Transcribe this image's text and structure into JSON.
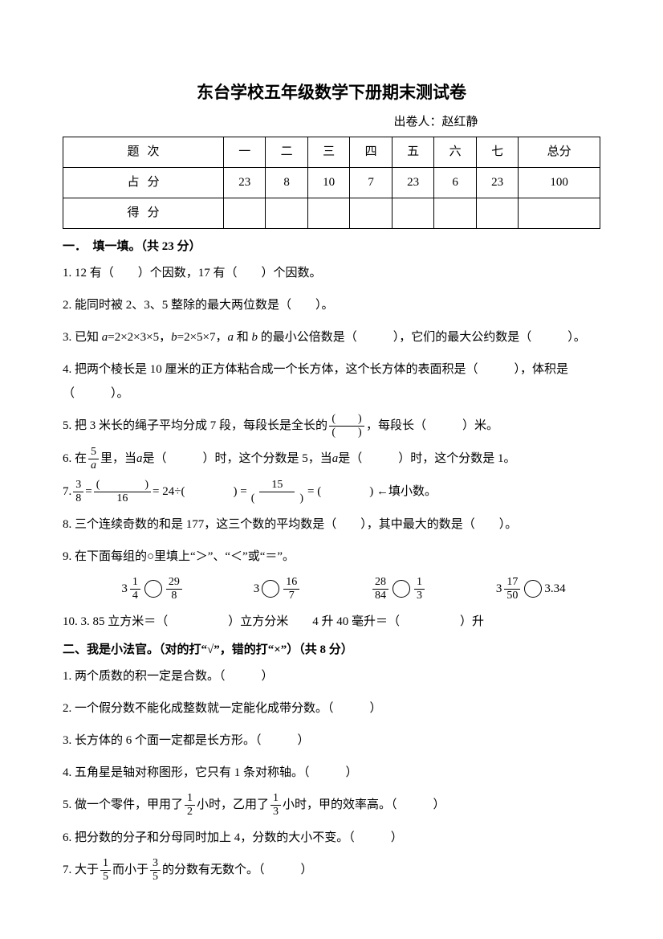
{
  "title": "东台学校五年级数学下册期末测试卷",
  "author": "出卷人：赵红静",
  "table": {
    "head_label": "题次",
    "row2_label": "占分",
    "row3_label": "得分",
    "cols": [
      "一",
      "二",
      "三",
      "四",
      "五",
      "六",
      "七",
      "总分"
    ],
    "scores": [
      "23",
      "8",
      "10",
      "7",
      "23",
      "6",
      "23",
      "100"
    ]
  },
  "sec1_head": "一．　填一填。（共 23 分）",
  "q1_1": "1. 12 有（　　）个因数，17 有（　　）个因数。",
  "q1_2": "2. 能同时被 2、3、5 整除的最大两位数是（　　）。",
  "q1_3a": "3. 已知 ",
  "q1_3b": "=2×2×3×5，",
  "q1_3c": "=2×5×7，",
  "q1_3d": " 和 ",
  "q1_3e": " 的最小公倍数是（　　　），它们的最大公约数是（　　　）。",
  "q1_4": "4. 把两个棱长是 10 厘米的正方体粘合成一个长方体，这个长方体的表面积是（　　　），体积是（　　　）。",
  "q1_5a": "5. 把 3 米长的绳子平均分成 7 段，每段长是全长的",
  "q1_5b": "，每段长（　　　）米。",
  "q1_6a": "6. 在",
  "q1_6b": "里，当 ",
  "q1_6c": " 是（　　　）时，这个分数是 5，当 ",
  "q1_6d": " 是（　　　）时，这个分数是 1。",
  "q1_7a": "7. ",
  "q1_7b": " = ",
  "q1_7c": " = 24÷(　　　　) = ",
  "q1_7d": " = (　　　　) ←填小数。",
  "q1_8": "8. 三个连续奇数的和是 177，这三个数的平均数是（　　），其中最大的数是（　　）。",
  "q1_9": "9. 在下面每组的○里填上“＞”、“＜”或“＝”。",
  "q1_10": "10. 3. 85 立方米＝（　　　　　）立方分米　　4 升 40 毫升＝（　　　　　）升",
  "sec2_head": "二、我是小法官。（对的打“√”，错的打“×”）（共 8 分）",
  "q2_1": "1. 两个质数的积一定是合数。（　　　）",
  "q2_2": "2. 一个假分数不能化成整数就一定能化成带分数。（　　　）",
  "q2_3": "3. 长方体的 6 个面一定都是长方形。（　　　）",
  "q2_4": "4. 五角星是轴对称图形，它只有 1 条对称轴。（　　　）",
  "q2_5a": "5. 做一个零件，甲用了",
  "q2_5b": "小时，乙用了",
  "q2_5c": "小时，甲的效率高。（　　　）",
  "q2_6": "6. 把分数的分子和分母同时加上 4，分数的大小不变。（　　　）",
  "q2_7a": "7. 大于",
  "q2_7b": "而小于",
  "q2_7c": "的分数有无数个。（　　　）",
  "fr": {
    "f5a_n": "5",
    "f5a_d": "a",
    "f38_n": "3",
    "f38_d": "8",
    "fblank16_n": "(　　　　)",
    "fblank16_d": "16",
    "f15blank_n": "15",
    "f15blank_d": "(　　　　)",
    "f14_n": "1",
    "f14_d": "4",
    "w3": "3",
    "f298_n": "29",
    "f298_d": "8",
    "f167_n": "16",
    "f167_d": "7",
    "f2884_n": "28",
    "f2884_d": "84",
    "f13_n": "1",
    "f13_d": "3",
    "f1750_n": "17",
    "f1750_d": "50",
    "v334": "3.34",
    "f12_n": "1",
    "f12_d": "2",
    "f15_n": "1",
    "f15_d": "5",
    "f35_n": "3",
    "f35_d": "5",
    "blank_n": "(　　)",
    "blank_d": "(　　)"
  },
  "var_a": "a",
  "var_b": "b"
}
